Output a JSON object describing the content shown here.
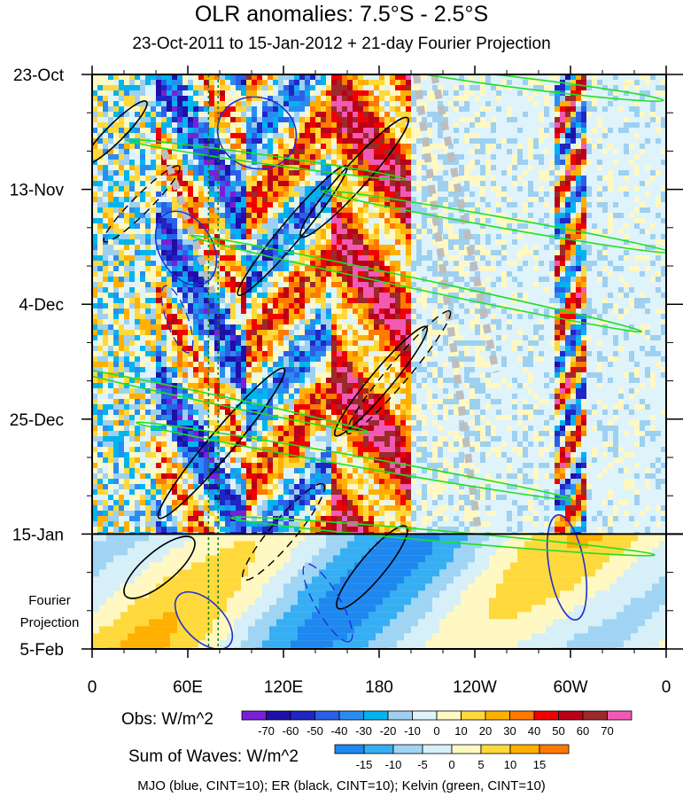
{
  "chart_data": {
    "type": "heatmap",
    "title": "OLR anomalies: 7.5°S - 2.5°S",
    "subtitle": "23-Oct-2011 to 15-Jan-2012 + 21-day Fourier Projection",
    "x_ticks": [
      "0",
      "60E",
      "120E",
      "180",
      "120W",
      "60W",
      "0"
    ],
    "x_values": [
      0,
      60,
      120,
      180,
      240,
      300,
      360
    ],
    "y_ticks": [
      "23-Oct",
      "13-Nov",
      "4-Dec",
      "25-Dec",
      "15-Jan",
      "5-Feb"
    ],
    "y_days": [
      0,
      21,
      42,
      63,
      84,
      105
    ],
    "projection_start_day": 84,
    "projection_label": [
      "Fourier",
      "Projection"
    ],
    "obs_colorbar": {
      "label": "Obs: W/m^2",
      "levels": [
        "-70",
        "-60",
        "-50",
        "-40",
        "-30",
        "-20",
        "-10",
        "0",
        "10",
        "20",
        "30",
        "40",
        "50",
        "60",
        "70"
      ],
      "colors": [
        "#7a1fd6",
        "#1d0fa8",
        "#2026c4",
        "#2b5fe8",
        "#2b8cf0",
        "#00b4ef",
        "#9ed0f0",
        "#dff3fb",
        "#fff8c2",
        "#ffd93c",
        "#ffb000",
        "#ff7a00",
        "#f00000",
        "#bb0018",
        "#9c2a2a",
        "#f05ab4"
      ]
    },
    "waves_colorbar": {
      "label": "Sum of Waves: W/m^2",
      "levels": [
        "-15",
        "-10",
        "-5",
        "0",
        "5",
        "10",
        "15"
      ],
      "colors": [
        "#1e88f0",
        "#36aef4",
        "#9fd4f5",
        "#d6eff9",
        "#fff8c2",
        "#ffd93c",
        "#ffb000",
        "#ff7a00"
      ]
    },
    "footer": "MJO (blue, CINT=10); ER (black, CINT=10); Kelvin (green, CINT=10)",
    "mjo_longitude_lines": [
      73,
      79
    ]
  }
}
